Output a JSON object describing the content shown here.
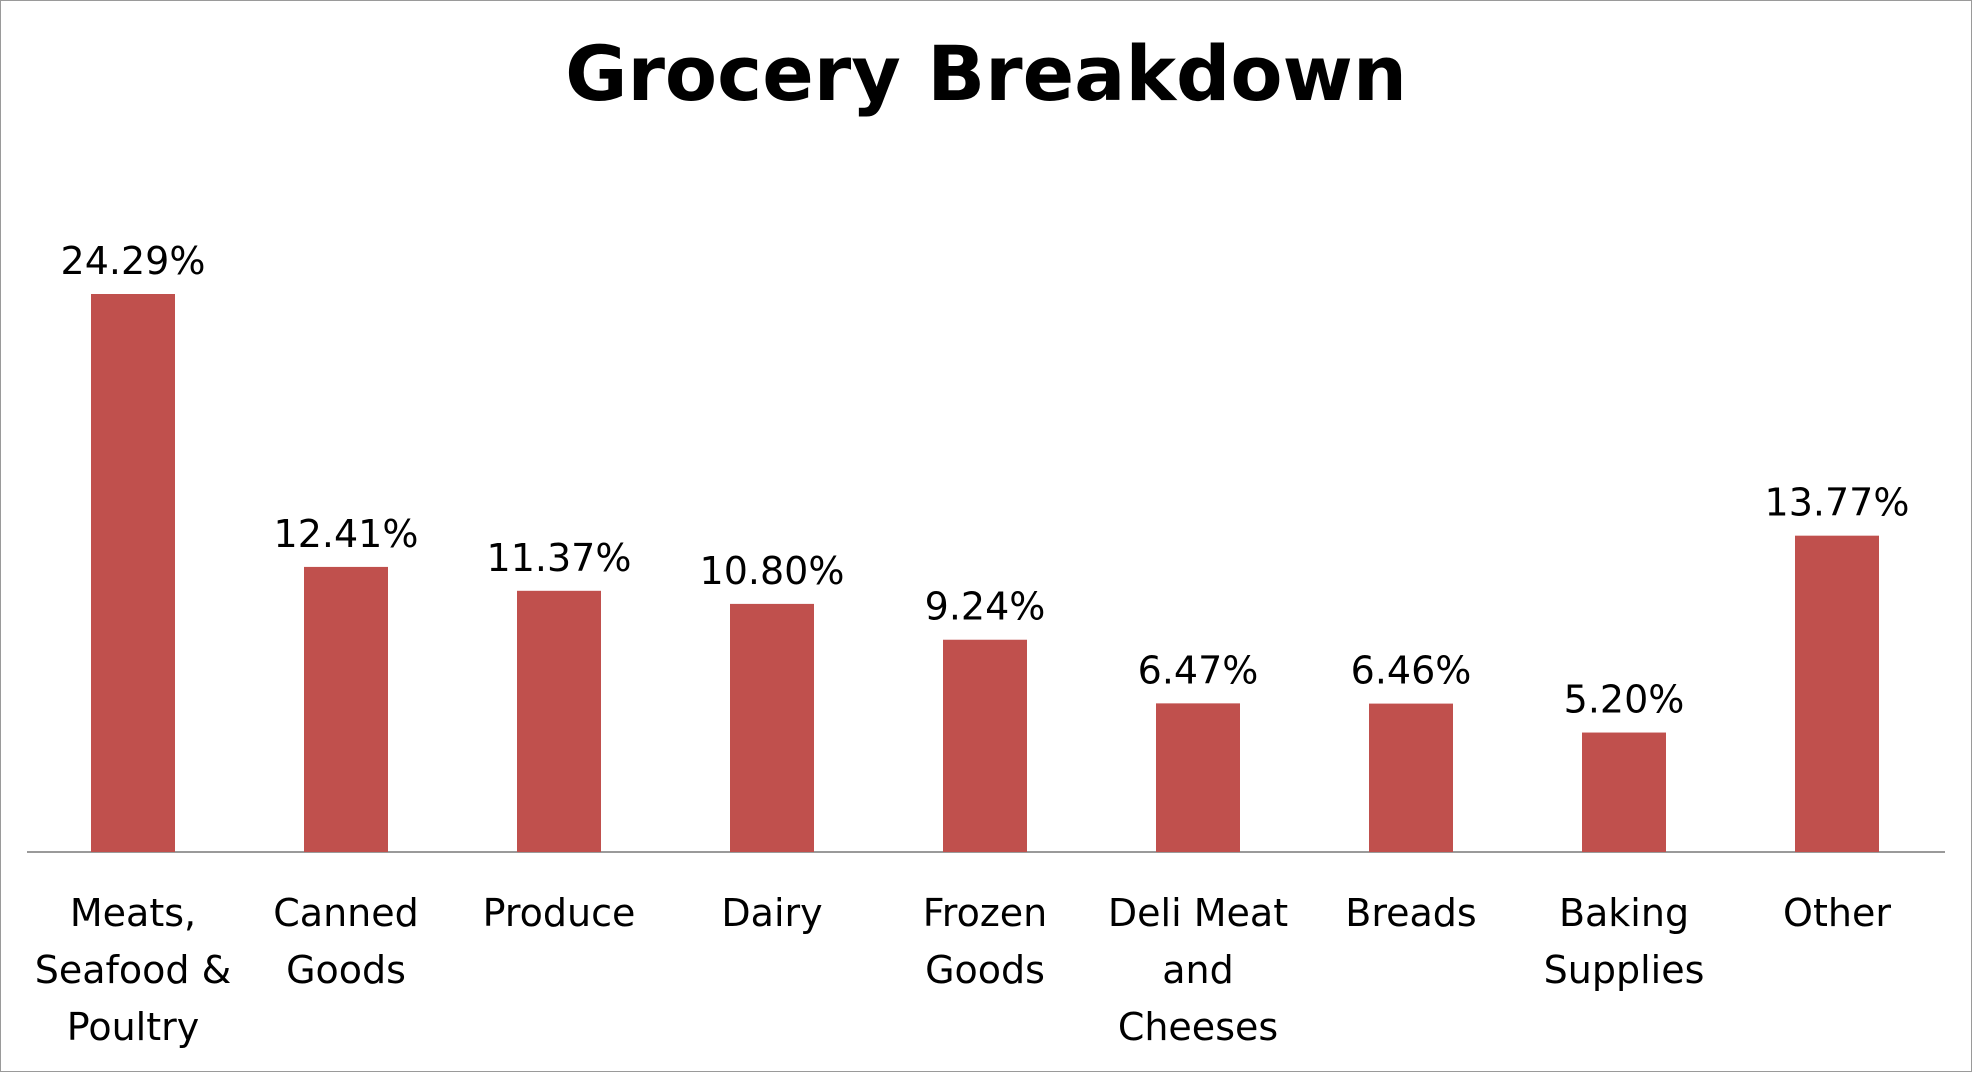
{
  "chart_data": {
    "type": "bar",
    "title": "Grocery Breakdown",
    "xlabel": "",
    "ylabel": "",
    "categories": [
      "Meats,\nSeafood &\nPoultry",
      "Canned\nGoods",
      "Produce",
      "Dairy",
      "Frozen\nGoods",
      "Deli Meat\nand\nCheeses",
      "Breads",
      "Baking\nSupplies",
      "Other"
    ],
    "values": [
      24.29,
      12.41,
      11.37,
      10.8,
      9.24,
      6.47,
      6.46,
      5.2,
      13.77
    ],
    "data_labels": [
      "24.29%",
      "12.41%",
      "11.37%",
      "10.80%",
      "9.24%",
      "6.47%",
      "6.46%",
      "5.20%",
      "13.77%"
    ],
    "ylim": [
      0,
      24.29
    ],
    "grid": false,
    "legend": "none",
    "bar_color": "#c0504d",
    "axis_color": "#9a9a9a"
  }
}
